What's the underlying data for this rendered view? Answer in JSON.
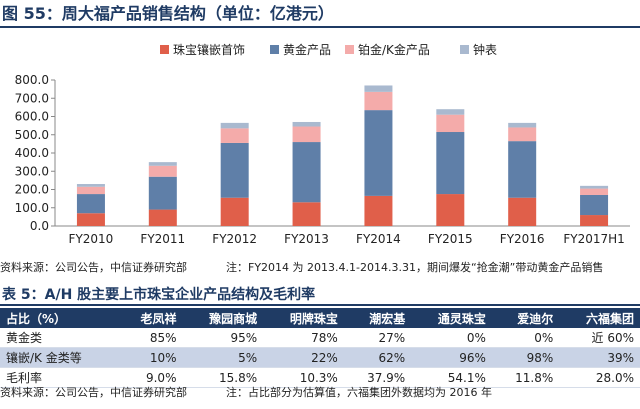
{
  "figure_title": "图 55：周大福产品销售结构（单位：亿港元）",
  "chart_source": "资料来源：公司公告，中信证券研究部",
  "chart_note": "注：FY2014 为 2013.4.1-2014.3.31，期间爆发“抢金潮”带动黄金产品销售",
  "colors": {
    "jewelry": "#e05f4a",
    "gold": "#5f7fa8",
    "platinum": "#f4abaa",
    "watch": "#a9b9cf",
    "header": "#1f3b64"
  },
  "chart_data": {
    "type": "bar",
    "stacked": true,
    "title": "图 55：周大福产品销售结构（单位：亿港元）",
    "categories": [
      "FY2010",
      "FY2011",
      "FY2012",
      "FY2013",
      "FY2014",
      "FY2015",
      "FY2016",
      "FY2017H1"
    ],
    "series": [
      {
        "name": "珠宝镶嵌首饰",
        "color": "#e05f4a",
        "values": [
          70,
          90,
          155,
          130,
          165,
          175,
          155,
          60
        ]
      },
      {
        "name": "黄金产品",
        "color": "#5f7fa8",
        "values": [
          105,
          180,
          300,
          330,
          470,
          340,
          310,
          110
        ]
      },
      {
        "name": "铂金/K金产品",
        "color": "#f4abaa",
        "values": [
          40,
          60,
          80,
          85,
          100,
          95,
          75,
          35
        ]
      },
      {
        "name": "钟表",
        "color": "#a9b9cf",
        "values": [
          15,
          20,
          30,
          25,
          35,
          30,
          25,
          15
        ]
      }
    ],
    "ylim": [
      0,
      800
    ],
    "yticks": [
      "0.0",
      "100.0",
      "200.0",
      "300.0",
      "400.0",
      "500.0",
      "600.0",
      "700.0",
      "800.0"
    ],
    "legend_position": "top",
    "grid": false
  },
  "table": {
    "title": "表 5：A/H 股主要上市珠宝企业产品结构及毛利率",
    "headers": [
      "占比（%）",
      "老凤祥",
      "豫园商城",
      "明牌珠宝",
      "潮宏基",
      "通灵珠宝",
      "爱迪尔",
      "六福集团"
    ],
    "rows": [
      {
        "cells": [
          "黄金类",
          "85%",
          "95%",
          "78%",
          "27%",
          "0%",
          "0%",
          "近 60%"
        ],
        "shaded": false
      },
      {
        "cells": [
          "镶嵌/K 金类等",
          "10%",
          "5%",
          "22%",
          "62%",
          "96%",
          "98%",
          "39%"
        ],
        "shaded": true
      },
      {
        "cells": [
          "毛利率",
          "9.0%",
          "15.8%",
          "10.3%",
          "37.9%",
          "54.1%",
          "11.8%",
          "28.0%"
        ],
        "shaded": false
      }
    ],
    "source": "资料来源：公司公告，中信证券研究部",
    "note": "注：占比部分为估算值，六福集团外数据均为 2016 年"
  }
}
